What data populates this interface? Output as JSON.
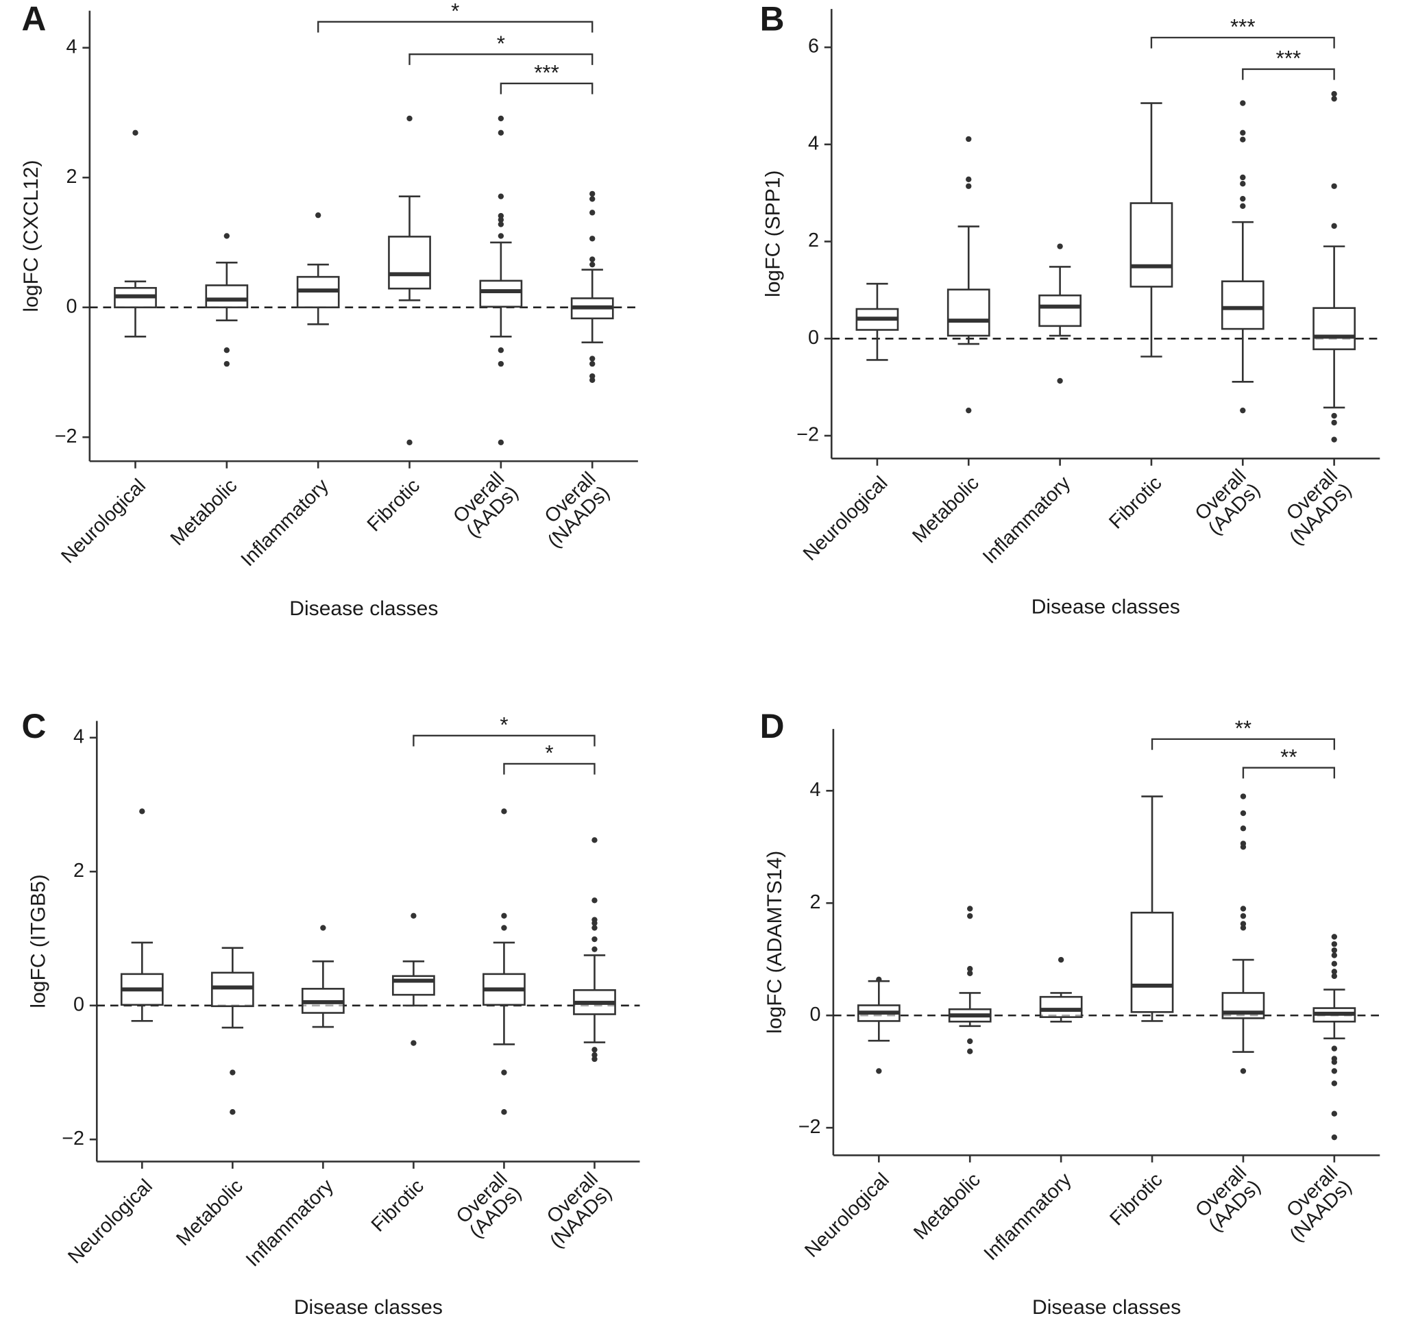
{
  "chart_data": [
    {
      "type": "box",
      "title": "A",
      "y_label": "logFC (CXCL12)",
      "x_label": "Disease classes",
      "categories": [
        "Neurological",
        "Metabolic",
        "Inflammatory",
        "Fibrotic",
        "Overall\n(AADs)",
        "Overall\n(NAADs)"
      ],
      "ylim": [
        -2.37,
        4.57
      ],
      "yticks": [
        {
          "value": -2,
          "label": "−2"
        },
        0,
        2,
        4
      ],
      "hline": 0,
      "boxes": [
        {
          "low": -0.45,
          "q1": 0,
          "median": 0.17,
          "q3": 0.3,
          "high": 0.4,
          "outliers": [
            2.69
          ]
        },
        {
          "low": -0.2,
          "q1": 0,
          "median": 0.12,
          "q3": 0.34,
          "high": 0.69,
          "outliers": [
            1.1,
            -0.66,
            -0.87
          ]
        },
        {
          "low": -0.26,
          "q1": 0,
          "median": 0.26,
          "q3": 0.47,
          "high": 0.66,
          "outliers": [
            1.42
          ]
        },
        {
          "low": 0.11,
          "q1": 0.29,
          "median": 0.51,
          "q3": 1.09,
          "high": 1.71,
          "outliers": [
            2.91,
            -2.08
          ]
        },
        {
          "low": -0.45,
          "q1": 0.01,
          "median": 0.25,
          "q3": 0.41,
          "high": 1.0,
          "outliers": [
            2.91,
            2.69,
            1.71,
            1.41,
            1.35,
            1.28,
            1.1,
            -0.66,
            -0.87,
            -2.08
          ]
        },
        {
          "low": -0.54,
          "q1": -0.17,
          "median": 0,
          "q3": 0.14,
          "high": 0.58,
          "outliers": [
            1.75,
            1.67,
            1.46,
            1.06,
            0.74,
            0.66,
            -0.79,
            -0.87,
            -1.06,
            -1.12
          ]
        }
      ],
      "comparisons": [
        {
          "from": "Inflammatory",
          "to": "Overall\n(NAADs)",
          "label": "*",
          "y": 4.4
        },
        {
          "from": "Fibrotic",
          "to": "Overall\n(NAADs)",
          "label": "*",
          "y": 3.9
        },
        {
          "from": "Overall\n(AADs)",
          "to": "Overall\n(NAADs)",
          "label": "***",
          "y": 3.45
        }
      ]
    },
    {
      "type": "box",
      "title": "B",
      "y_label": "logFC (SPP1)",
      "x_label": "Disease classes",
      "categories": [
        "Neurological",
        "Metabolic",
        "Inflammatory",
        "Fibrotic",
        "Overall\n(AADs)",
        "Overall\n(NAADs)"
      ],
      "ylim": [
        -2.47,
        6.79
      ],
      "yticks": [
        {
          "value": -2,
          "label": "−2"
        },
        0,
        2,
        4,
        6
      ],
      "hline": 0,
      "boxes": [
        {
          "low": -0.44,
          "q1": 0.18,
          "median": 0.41,
          "q3": 0.61,
          "high": 1.13,
          "outliers": []
        },
        {
          "low": -0.11,
          "q1": 0.06,
          "median": 0.37,
          "q3": 1.01,
          "high": 2.31,
          "outliers": [
            4.11,
            3.28,
            3.14,
            -1.48
          ]
        },
        {
          "low": 0.06,
          "q1": 0.26,
          "median": 0.66,
          "q3": 0.89,
          "high": 1.48,
          "outliers": [
            1.9,
            -0.87
          ]
        },
        {
          "low": -0.37,
          "q1": 1.07,
          "median": 1.49,
          "q3": 2.79,
          "high": 4.85,
          "outliers": []
        },
        {
          "low": -0.89,
          "q1": 0.2,
          "median": 0.63,
          "q3": 1.18,
          "high": 2.4,
          "outliers": [
            4.85,
            4.24,
            4.1,
            3.32,
            3.19,
            2.88,
            2.73,
            -1.48
          ]
        },
        {
          "low": -1.42,
          "q1": -0.22,
          "median": 0.04,
          "q3": 0.63,
          "high": 1.9,
          "outliers": [
            5.04,
            4.94,
            3.14,
            2.32,
            -1.59,
            -1.73,
            -2.08
          ]
        }
      ],
      "comparisons": [
        {
          "from": "Fibrotic",
          "to": "Overall\n(NAADs)",
          "label": "***",
          "y": 6.2
        },
        {
          "from": "Overall\n(AADs)",
          "to": "Overall\n(NAADs)",
          "label": "***",
          "y": 5.55
        }
      ]
    },
    {
      "type": "box",
      "title": "C",
      "y_label": "logFC (ITGB5)",
      "x_label": "Disease classes",
      "categories": [
        "Neurological",
        "Metabolic",
        "Inflammatory",
        "Fibrotic",
        "Overall\n(AADs)",
        "Overall\n(NAADs)"
      ],
      "ylim": [
        -2.33,
        4.25
      ],
      "yticks": [
        {
          "value": -2,
          "label": "−2"
        },
        0,
        2,
        4
      ],
      "hline": 0,
      "boxes": [
        {
          "low": -0.23,
          "q1": 0.01,
          "median": 0.24,
          "q3": 0.47,
          "high": 0.94,
          "outliers": [
            2.9
          ]
        },
        {
          "low": -0.33,
          "q1": -0.01,
          "median": 0.27,
          "q3": 0.49,
          "high": 0.86,
          "outliers": [
            -1.0,
            -1.59
          ]
        },
        {
          "low": -0.32,
          "q1": -0.11,
          "median": 0.05,
          "q3": 0.25,
          "high": 0.66,
          "outliers": [
            1.16
          ]
        },
        {
          "low": 0,
          "q1": 0.16,
          "median": 0.37,
          "q3": 0.44,
          "high": 0.66,
          "outliers": [
            1.34,
            -0.56
          ]
        },
        {
          "low": -0.58,
          "q1": 0.01,
          "median": 0.24,
          "q3": 0.47,
          "high": 0.94,
          "outliers": [
            2.9,
            1.34,
            1.16,
            -1.0,
            -1.59
          ]
        },
        {
          "low": -0.55,
          "q1": -0.13,
          "median": 0.04,
          "q3": 0.23,
          "high": 0.75,
          "outliers": [
            2.47,
            1.57,
            1.28,
            1.23,
            1.16,
            0.99,
            0.84,
            -0.66,
            -0.74,
            -0.8
          ]
        }
      ],
      "comparisons": [
        {
          "from": "Fibrotic",
          "to": "Overall\n(NAADs)",
          "label": "*",
          "y": 4.03
        },
        {
          "from": "Overall\n(AADs)",
          "to": "Overall\n(NAADs)",
          "label": "*",
          "y": 3.61
        }
      ]
    },
    {
      "type": "box",
      "title": "D",
      "y_label": "logFC (ADAMTS14)",
      "x_label": "Disease classes",
      "categories": [
        "Neurological",
        "Metabolic",
        "Inflammatory",
        "Fibrotic",
        "Overall\n(AADs)",
        "Overall\n(NAADs)"
      ],
      "ylim": [
        -2.49,
        5.1
      ],
      "yticks": [
        {
          "value": -2,
          "label": "−2"
        },
        0,
        2,
        4
      ],
      "hline": 0,
      "boxes": [
        {
          "low": -0.45,
          "q1": -0.1,
          "median": 0.05,
          "q3": 0.18,
          "high": 0.61,
          "outliers": [
            0.64,
            -0.99
          ]
        },
        {
          "low": -0.19,
          "q1": -0.11,
          "median": 0,
          "q3": 0.11,
          "high": 0.4,
          "outliers": [
            1.9,
            1.77,
            0.83,
            0.75,
            -0.46,
            -0.64
          ]
        },
        {
          "low": -0.11,
          "q1": -0.03,
          "median": 0.1,
          "q3": 0.33,
          "high": 0.4,
          "outliers": [
            0.99
          ]
        },
        {
          "low": -0.1,
          "q1": 0.06,
          "median": 0.53,
          "q3": 1.83,
          "high": 3.9,
          "outliers": []
        },
        {
          "low": -0.65,
          "q1": -0.05,
          "median": 0.05,
          "q3": 0.4,
          "high": 0.99,
          "outliers": [
            3.9,
            3.6,
            3.33,
            3.06,
            3.0,
            1.9,
            1.77,
            1.63,
            1.56,
            -0.99
          ]
        },
        {
          "low": -0.41,
          "q1": -0.11,
          "median": 0.03,
          "q3": 0.13,
          "high": 0.46,
          "outliers": [
            1.4,
            1.27,
            1.16,
            1.07,
            0.92,
            0.78,
            0.7,
            -0.59,
            -0.77,
            -0.83,
            -0.99,
            -1.21,
            -1.75,
            -2.17
          ]
        }
      ],
      "comparisons": [
        {
          "from": "Fibrotic",
          "to": "Overall\n(NAADs)",
          "label": "**",
          "y": 4.92
        },
        {
          "from": "Overall\n(AADs)",
          "to": "Overall\n(NAADs)",
          "label": "**",
          "y": 4.41
        }
      ]
    }
  ]
}
